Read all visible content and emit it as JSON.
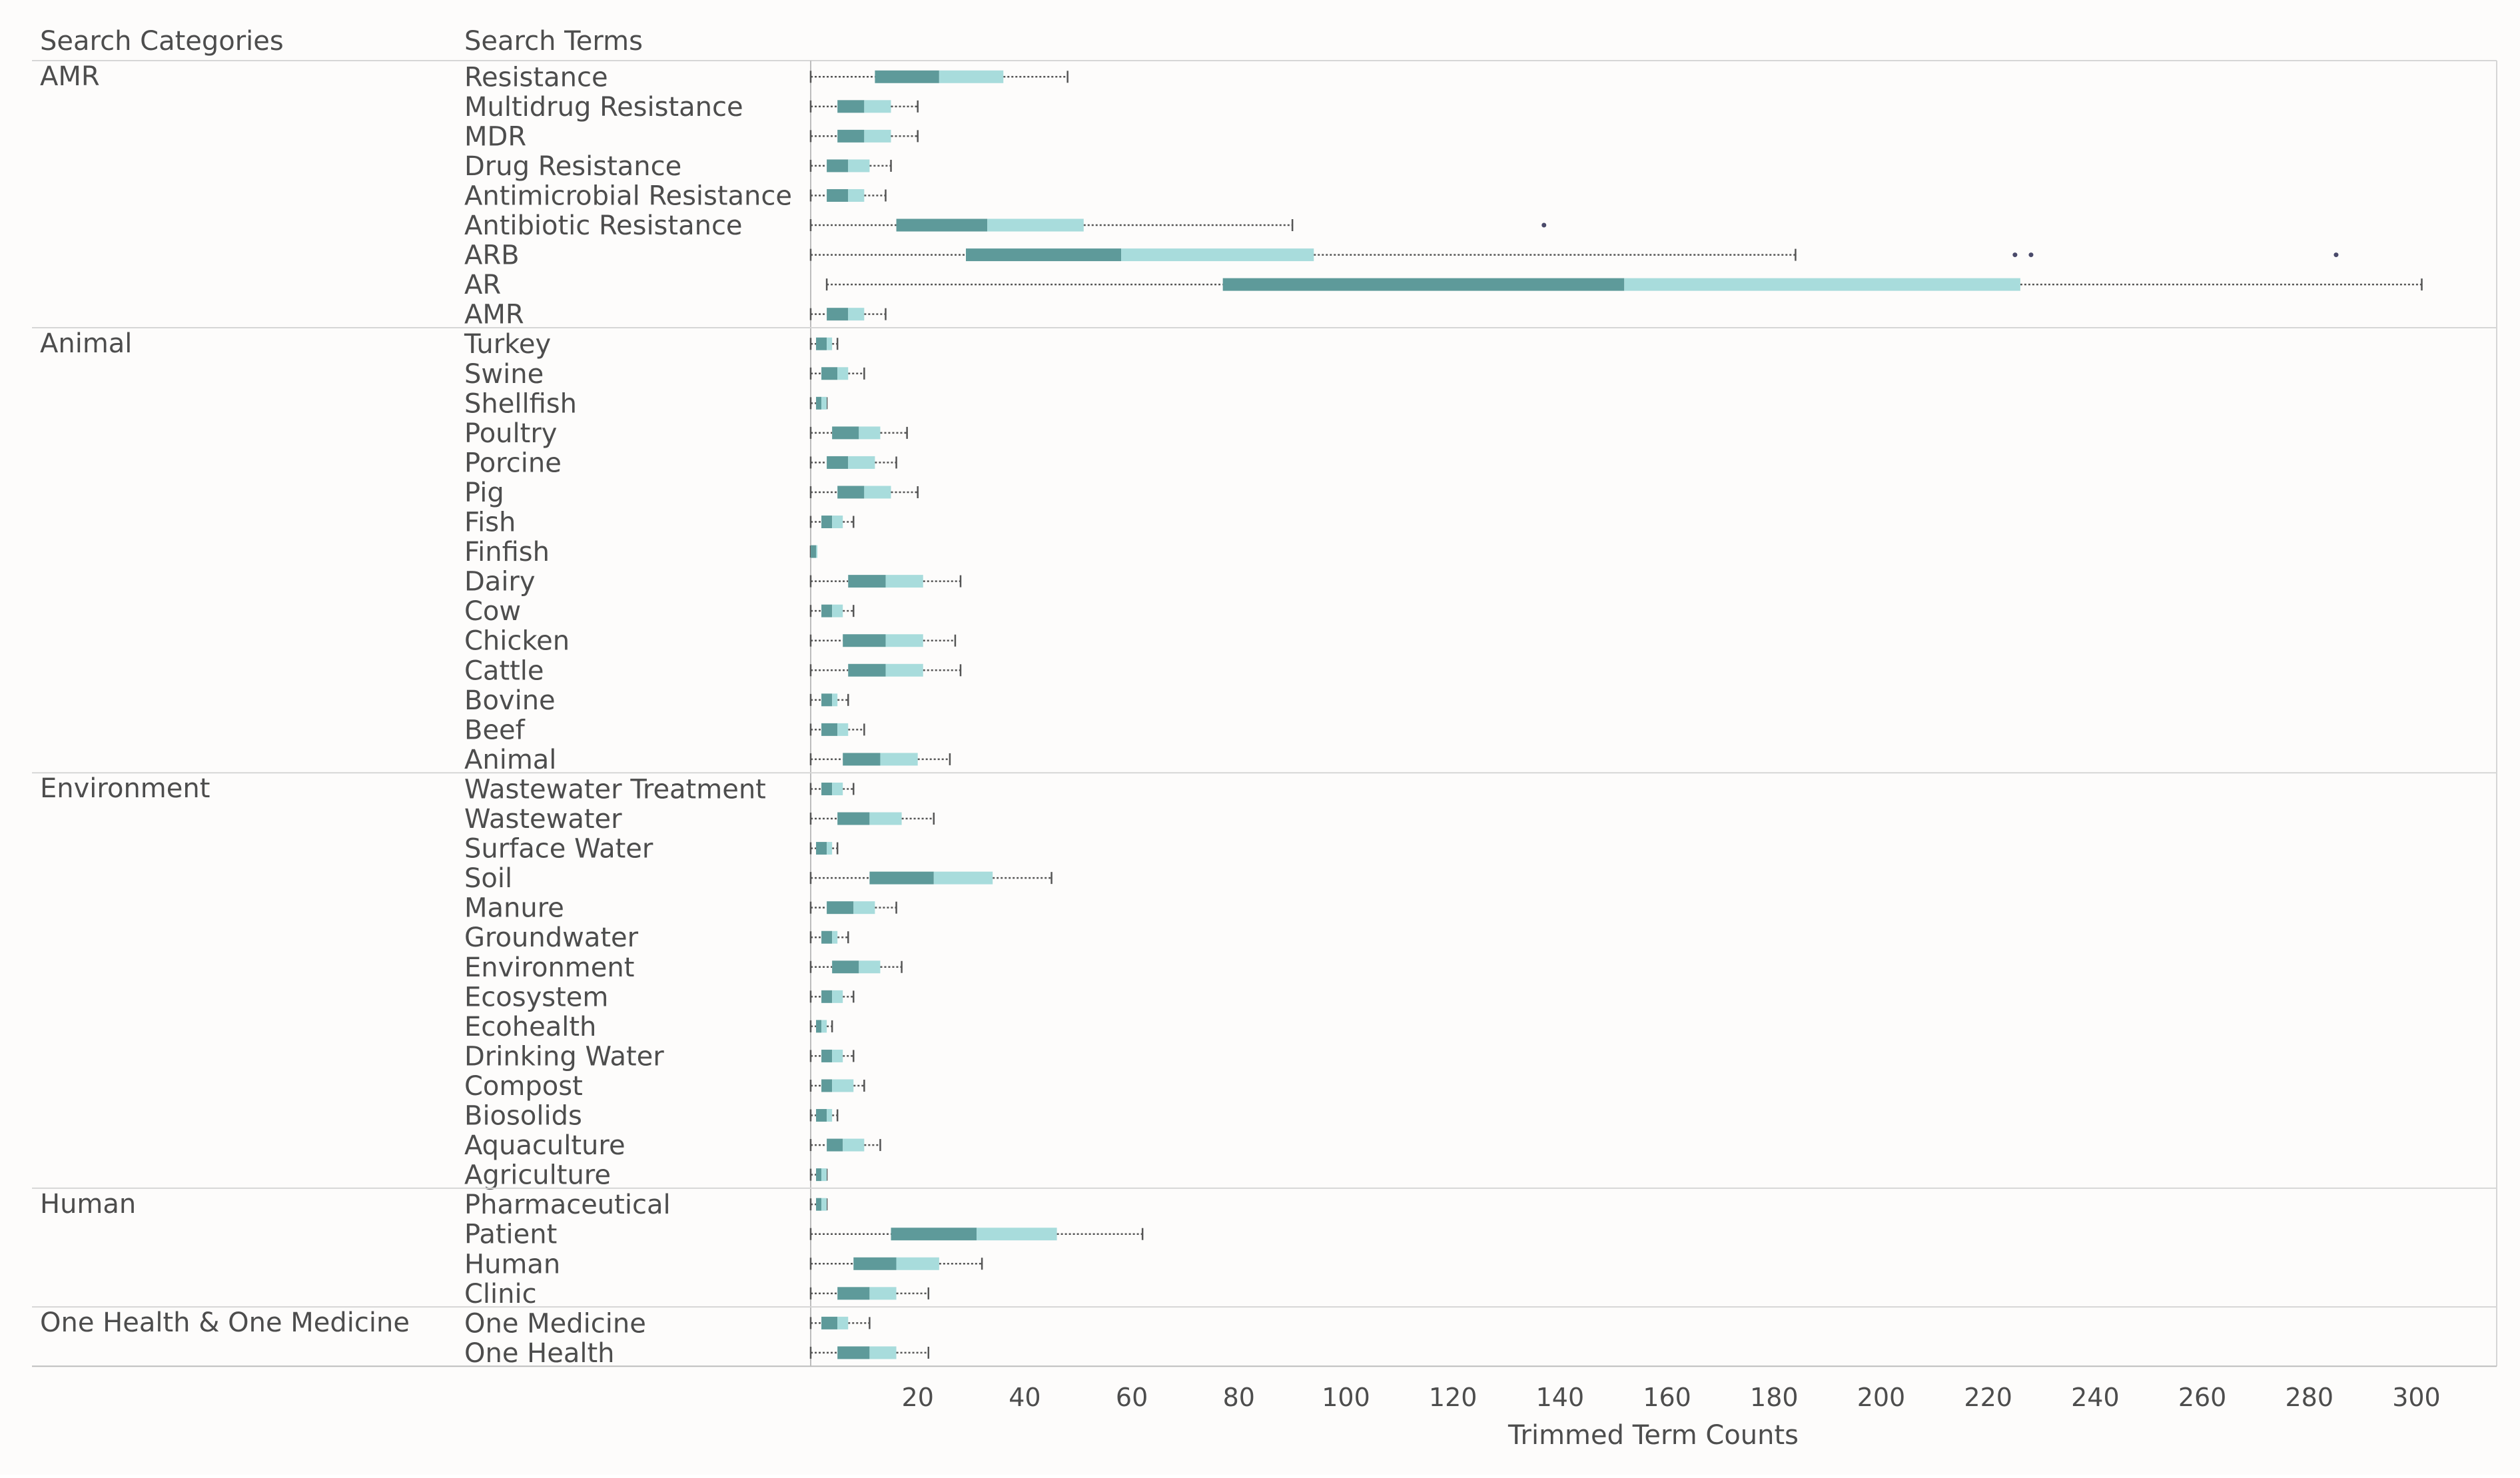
{
  "chart_data": {
    "type": "boxplot",
    "orientation": "horizontal",
    "title": "",
    "header_categories": "Search Categories",
    "header_terms": "Search Terms",
    "xlabel": "Trimmed Term Counts",
    "xlim": [
      0,
      315
    ],
    "xticks": [
      20,
      40,
      60,
      80,
      100,
      120,
      140,
      160,
      180,
      200,
      220,
      240,
      260,
      280,
      300
    ],
    "grid": false,
    "colors": {
      "lower_box": "#5e9a9a",
      "upper_box": "#a8dcdc",
      "whisker": "#555555",
      "outlier": "#4a4a6a",
      "divider": "#d6d6d6"
    },
    "groups": [
      {
        "category": "AMR",
        "terms": [
          {
            "term": "Resistance",
            "min": 0,
            "q1": 12,
            "median": 24,
            "q3": 36,
            "max": 48,
            "outliers": []
          },
          {
            "term": "Multidrug Resistance",
            "min": 0,
            "q1": 5,
            "median": 10,
            "q3": 15,
            "max": 20,
            "outliers": []
          },
          {
            "term": "MDR",
            "min": 0,
            "q1": 5,
            "median": 10,
            "q3": 15,
            "max": 20,
            "outliers": []
          },
          {
            "term": "Drug Resistance",
            "min": 0,
            "q1": 3,
            "median": 7,
            "q3": 11,
            "max": 15,
            "outliers": []
          },
          {
            "term": "Antimicrobial Resistance",
            "min": 0,
            "q1": 3,
            "median": 7,
            "q3": 10,
            "max": 14,
            "outliers": []
          },
          {
            "term": "Antibiotic Resistance",
            "min": 0,
            "q1": 16,
            "median": 33,
            "q3": 51,
            "max": 90,
            "outliers": [
              137
            ]
          },
          {
            "term": "ARB",
            "min": 0,
            "q1": 29,
            "median": 58,
            "q3": 94,
            "max": 184,
            "outliers": [
              225,
              228,
              285
            ]
          },
          {
            "term": "AR",
            "min": 3,
            "q1": 77,
            "median": 152,
            "q3": 226,
            "max": 301,
            "outliers": []
          },
          {
            "term": "AMR",
            "min": 0,
            "q1": 3,
            "median": 7,
            "q3": 10,
            "max": 14,
            "outliers": []
          }
        ]
      },
      {
        "category": "Animal",
        "terms": [
          {
            "term": "Turkey",
            "min": 0,
            "q1": 1,
            "median": 3,
            "q3": 4,
            "max": 5,
            "outliers": []
          },
          {
            "term": "Swine",
            "min": 0,
            "q1": 2,
            "median": 5,
            "q3": 7,
            "max": 10,
            "outliers": []
          },
          {
            "term": "Shellfish",
            "min": 0,
            "q1": 1,
            "median": 2,
            "q3": 3,
            "max": 3,
            "outliers": []
          },
          {
            "term": "Poultry",
            "min": 0,
            "q1": 4,
            "median": 9,
            "q3": 13,
            "max": 18,
            "outliers": []
          },
          {
            "term": "Porcine",
            "min": 0,
            "q1": 3,
            "median": 7,
            "q3": 12,
            "max": 16,
            "outliers": []
          },
          {
            "term": "Pig",
            "min": 0,
            "q1": 5,
            "median": 10,
            "q3": 15,
            "max": 20,
            "outliers": []
          },
          {
            "term": "Fish",
            "min": 0,
            "q1": 2,
            "median": 4,
            "q3": 6,
            "max": 8,
            "outliers": []
          },
          {
            "term": "Finfish",
            "min": 0,
            "q1": 0,
            "median": 1,
            "q3": 1,
            "max": 1,
            "outliers": []
          },
          {
            "term": "Dairy",
            "min": 0,
            "q1": 7,
            "median": 14,
            "q3": 21,
            "max": 28,
            "outliers": []
          },
          {
            "term": "Cow",
            "min": 0,
            "q1": 2,
            "median": 4,
            "q3": 6,
            "max": 8,
            "outliers": []
          },
          {
            "term": "Chicken",
            "min": 0,
            "q1": 6,
            "median": 14,
            "q3": 21,
            "max": 27,
            "outliers": []
          },
          {
            "term": "Cattle",
            "min": 0,
            "q1": 7,
            "median": 14,
            "q3": 21,
            "max": 28,
            "outliers": []
          },
          {
            "term": "Bovine",
            "min": 0,
            "q1": 2,
            "median": 4,
            "q3": 5,
            "max": 7,
            "outliers": []
          },
          {
            "term": "Beef",
            "min": 0,
            "q1": 2,
            "median": 5,
            "q3": 7,
            "max": 10,
            "outliers": []
          },
          {
            "term": "Animal",
            "min": 0,
            "q1": 6,
            "median": 13,
            "q3": 20,
            "max": 26,
            "outliers": []
          }
        ]
      },
      {
        "category": "Environment",
        "terms": [
          {
            "term": "Wastewater Treatment",
            "min": 0,
            "q1": 2,
            "median": 4,
            "q3": 6,
            "max": 8,
            "outliers": []
          },
          {
            "term": "Wastewater",
            "min": 0,
            "q1": 5,
            "median": 11,
            "q3": 17,
            "max": 23,
            "outliers": []
          },
          {
            "term": "Surface Water",
            "min": 0,
            "q1": 1,
            "median": 3,
            "q3": 4,
            "max": 5,
            "outliers": []
          },
          {
            "term": "Soil",
            "min": 0,
            "q1": 11,
            "median": 23,
            "q3": 34,
            "max": 45,
            "outliers": []
          },
          {
            "term": "Manure",
            "min": 0,
            "q1": 3,
            "median": 8,
            "q3": 12,
            "max": 16,
            "outliers": []
          },
          {
            "term": "Groundwater",
            "min": 0,
            "q1": 2,
            "median": 4,
            "q3": 5,
            "max": 7,
            "outliers": []
          },
          {
            "term": "Environment",
            "min": 0,
            "q1": 4,
            "median": 9,
            "q3": 13,
            "max": 17,
            "outliers": []
          },
          {
            "term": "Ecosystem",
            "min": 0,
            "q1": 2,
            "median": 4,
            "q3": 6,
            "max": 8,
            "outliers": []
          },
          {
            "term": "Ecohealth",
            "min": 0,
            "q1": 1,
            "median": 2,
            "q3": 3,
            "max": 4,
            "outliers": []
          },
          {
            "term": "Drinking Water",
            "min": 0,
            "q1": 2,
            "median": 4,
            "q3": 6,
            "max": 8,
            "outliers": []
          },
          {
            "term": "Compost",
            "min": 0,
            "q1": 2,
            "median": 4,
            "q3": 8,
            "max": 10,
            "outliers": []
          },
          {
            "term": "Biosolids",
            "min": 0,
            "q1": 1,
            "median": 3,
            "q3": 4,
            "max": 5,
            "outliers": []
          },
          {
            "term": "Aquaculture",
            "min": 0,
            "q1": 3,
            "median": 6,
            "q3": 10,
            "max": 13,
            "outliers": []
          },
          {
            "term": "Agriculture",
            "min": 0,
            "q1": 1,
            "median": 2,
            "q3": 3,
            "max": 3,
            "outliers": []
          }
        ]
      },
      {
        "category": "Human",
        "terms": [
          {
            "term": "Pharmaceutical",
            "min": 0,
            "q1": 1,
            "median": 2,
            "q3": 3,
            "max": 3,
            "outliers": []
          },
          {
            "term": "Patient",
            "min": 0,
            "q1": 15,
            "median": 31,
            "q3": 46,
            "max": 62,
            "outliers": []
          },
          {
            "term": "Human",
            "min": 0,
            "q1": 8,
            "median": 16,
            "q3": 24,
            "max": 32,
            "outliers": []
          },
          {
            "term": "Clinic",
            "min": 0,
            "q1": 5,
            "median": 11,
            "q3": 16,
            "max": 22,
            "outliers": []
          }
        ]
      },
      {
        "category": "One Health & One Medicine",
        "terms": [
          {
            "term": "One Medicine",
            "min": 0,
            "q1": 2,
            "median": 5,
            "q3": 7,
            "max": 11,
            "outliers": []
          },
          {
            "term": "One Health",
            "min": 0,
            "q1": 5,
            "median": 11,
            "q3": 16,
            "max": 22,
            "outliers": []
          }
        ]
      }
    ]
  }
}
